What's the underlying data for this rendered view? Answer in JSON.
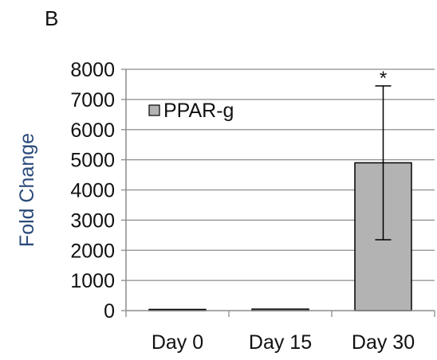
{
  "panel_label": "B",
  "chart_data": {
    "type": "bar",
    "categories": [
      "Day 0",
      "Day 15",
      "Day 30"
    ],
    "series": [
      {
        "name": "PPAR-g",
        "values": [
          40,
          50,
          4900
        ],
        "error": [
          0,
          0,
          2550
        ],
        "color": "#b3b3b3"
      }
    ],
    "ylabel": "Fold Change",
    "xlabel": "",
    "ylim": [
      0,
      8000
    ],
    "yticks": [
      0,
      1000,
      2000,
      3000,
      4000,
      5000,
      6000,
      7000,
      8000
    ],
    "grid": true,
    "legend": "top-left",
    "annotations": [
      {
        "category": "Day 30",
        "text": "*"
      }
    ]
  }
}
